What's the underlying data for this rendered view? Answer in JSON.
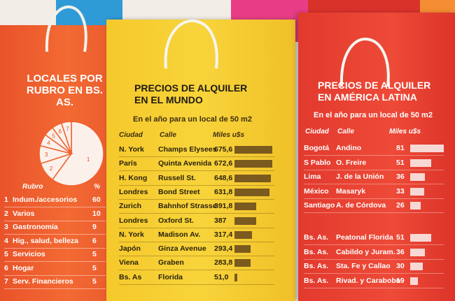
{
  "rubro": {
    "title_line1": "LOCALES POR",
    "title_line2": "RUBRO EN BS. AS.",
    "col_rubro": "Rubro",
    "col_pct": "%",
    "items": [
      {
        "n": "1",
        "name": "Indum./accesorios",
        "pct": 60
      },
      {
        "n": "2",
        "name": "Varios",
        "pct": 10
      },
      {
        "n": "3",
        "name": "Gastronomía",
        "pct": 9
      },
      {
        "n": "4",
        "name": "Hig., salud, belleza",
        "pct": 6
      },
      {
        "n": "5",
        "name": "Servicios",
        "pct": 5
      },
      {
        "n": "6",
        "name": "Hogar",
        "pct": 5
      },
      {
        "n": "7",
        "name": "Serv. Financieros",
        "pct": 5
      }
    ]
  },
  "mundo": {
    "title_line1": "PRECIOS DE ALQUILER",
    "title_line2": "EN EL MUNDO",
    "subtitle": "En el año para un local de 50 m2",
    "col_ciudad": "Ciudad",
    "col_calle": "Calle",
    "col_miles": "Miles u$s",
    "rows": [
      {
        "ciudad": "N. York",
        "calle": "Champs Elysees",
        "valor": 675.6,
        "label": "675,6"
      },
      {
        "ciudad": "París",
        "calle": "Quinta Avenida",
        "valor": 672.6,
        "label": "672,6"
      },
      {
        "ciudad": "H. Kong",
        "calle": "Russell St.",
        "valor": 648.6,
        "label": "648,6"
      },
      {
        "ciudad": "Londres",
        "calle": "Bond Street",
        "valor": 631.8,
        "label": "631,8"
      },
      {
        "ciudad": "Zurich",
        "calle": "Bahnhof Strasse",
        "valor": 391.8,
        "label": "391,8"
      },
      {
        "ciudad": "Londres",
        "calle": "Oxford St.",
        "valor": 387,
        "label": "387"
      },
      {
        "ciudad": "N. York",
        "calle": "Madison Av.",
        "valor": 317.4,
        "label": "317,4"
      },
      {
        "ciudad": "Japón",
        "calle": "Ginza Avenue",
        "valor": 293.4,
        "label": "293,4"
      },
      {
        "ciudad": "Viena",
        "calle": "Graben",
        "valor": 283.8,
        "label": "283,8"
      },
      {
        "ciudad": "Bs. As",
        "calle": "Florida",
        "valor": 51.0,
        "label": "51,0"
      }
    ]
  },
  "latam": {
    "title_line1": "PRECIOS DE ALQUILER",
    "title_line2": "EN AMÉRICA LATINA",
    "subtitle": "En el año para un local de 50 m2",
    "col_ciudad": "Ciudad",
    "col_calle": "Calle",
    "col_miles": "Miles u$s",
    "rows_top": [
      {
        "ciudad": "Bogotá",
        "calle": "Andino",
        "valor": 81
      },
      {
        "ciudad": "S Pablo",
        "calle": "O. Freire",
        "valor": 51
      },
      {
        "ciudad": "Lima",
        "calle": "J. de la Unión",
        "valor": 36
      },
      {
        "ciudad": "México",
        "calle": "Masaryk",
        "valor": 33
      },
      {
        "ciudad": "Santiago",
        "calle": "A. de Córdova",
        "valor": 26
      }
    ],
    "rows_bottom": [
      {
        "ciudad": "Bs. As.",
        "calle": "Peatonal Florida",
        "valor": 51
      },
      {
        "ciudad": "Bs. As.",
        "calle": "Cabildo y Juram.",
        "valor": 36
      },
      {
        "ciudad": "Bs. As.",
        "calle": "Sta. Fe y Callao",
        "valor": 30
      },
      {
        "ciudad": "Bs. As.",
        "calle": "Rivad. y Carabobo",
        "valor": 19
      }
    ]
  },
  "colors": {
    "orange_bag": "#f0612f",
    "yellow_bag": "#f6cf33",
    "red_bag": "#e8402f",
    "bar_mundo": "#7a5a1e",
    "bar_latam": "#f7d8d4"
  },
  "chart_data": [
    {
      "type": "pie",
      "title": "LOCALES POR RUBRO EN BS. AS.",
      "categories": [
        "Indum./accesorios",
        "Varios",
        "Gastronomía",
        "Hig., salud, belleza",
        "Servicios",
        "Hogar",
        "Serv. Financieros"
      ],
      "values": [
        60,
        10,
        9,
        6,
        5,
        5,
        5
      ],
      "ylabel": "%"
    },
    {
      "type": "bar",
      "title": "PRECIOS DE ALQUILER EN EL MUNDO",
      "subtitle": "En el año para un local de 50 m2",
      "categories": [
        "N. York",
        "París",
        "H. Kong",
        "Londres",
        "Zurich",
        "Londres",
        "N. York",
        "Japón",
        "Viena",
        "Bs. As"
      ],
      "values": [
        675.6,
        672.6,
        648.6,
        631.8,
        391.8,
        387,
        317.4,
        293.4,
        283.8,
        51.0
      ],
      "ylabel": "Miles u$s"
    },
    {
      "type": "bar",
      "title": "PRECIOS DE ALQUILER EN AMÉRICA LATINA",
      "subtitle": "En el año para un local de 50 m2",
      "categories": [
        "Bogotá",
        "S Pablo",
        "Lima",
        "México",
        "Santiago",
        "Bs. As.",
        "Bs. As.",
        "Bs. As.",
        "Bs. As."
      ],
      "values": [
        81,
        51,
        36,
        33,
        26,
        51,
        36,
        30,
        19
      ],
      "ylabel": "Miles u$s"
    }
  ]
}
